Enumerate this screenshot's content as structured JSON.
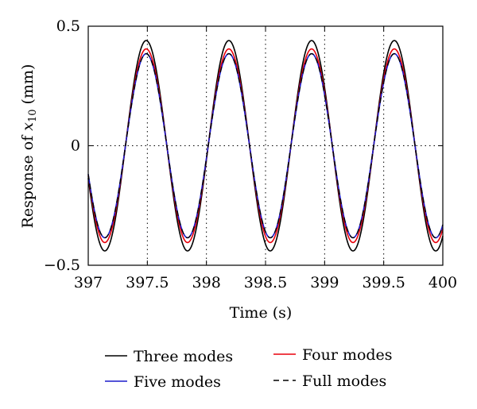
{
  "chart_data": {
    "type": "line",
    "xlabel": "Time (s)",
    "ylabel": {
      "prefix": "Response of ",
      "variable": "x",
      "subscript": "10",
      "suffix": " (mm)"
    },
    "xlim": [
      397,
      400
    ],
    "ylim": [
      -0.5,
      0.5
    ],
    "xticks": [
      397,
      397.5,
      398,
      398.5,
      399,
      399.5,
      400
    ],
    "xtick_labels": [
      "397",
      "397.5",
      "398",
      "398.5",
      "399",
      "399.5",
      "400"
    ],
    "yticks": [
      -0.5,
      0,
      0.5
    ],
    "ytick_labels": [
      "−0.5",
      "0",
      "0.5"
    ],
    "grid": "dotted at inner ticks",
    "legend_position": "bottom, outside plot",
    "period": 0.7,
    "peak_times": [
      397.49,
      398.19,
      398.89,
      399.59
    ],
    "trough_times": [
      397.14,
      397.84,
      398.54,
      399.24,
      399.94
    ],
    "zero_crossings_rising": [
      397.315,
      398.015,
      398.715,
      399.415
    ],
    "series": [
      {
        "name": "Three modes",
        "amplitude": 0.44,
        "color": "#000000",
        "dash": "solid"
      },
      {
        "name": "Four modes",
        "amplitude": 0.405,
        "color": "#e8000b",
        "dash": "solid"
      },
      {
        "name": "Five modes",
        "amplitude": 0.385,
        "color": "#1a1acc",
        "dash": "solid"
      },
      {
        "name": "Full modes",
        "amplitude": 0.385,
        "color": "#000000",
        "dash": "dashed"
      }
    ]
  }
}
